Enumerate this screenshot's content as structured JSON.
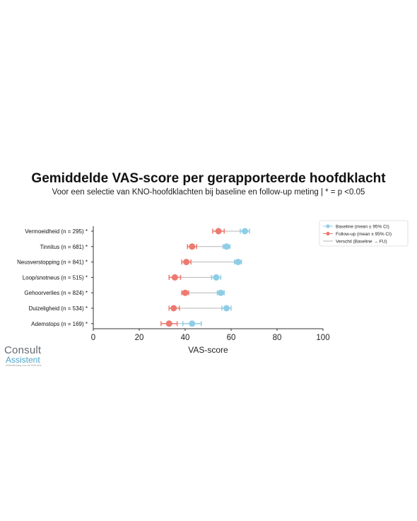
{
  "colors": {
    "baseline": "#8ecde6",
    "followup": "#ec7a70",
    "diff": "#b5b5b5",
    "axis": "#333333"
  },
  "chart_data": {
    "type": "dot-plot",
    "title": "Gemiddelde VAS-score per gerapporteerde hoofdklacht",
    "subtitle": "Voor een selectie van KNO-hoofdklachten bij baseline en follow-up meting | * = p <0.05",
    "xlabel": "VAS-score",
    "xlim": [
      0,
      100
    ],
    "xticks": [
      0,
      20,
      40,
      60,
      80,
      100
    ],
    "categories": [
      "Vermoeidheid (n = 295) *",
      "Tinnitus (n = 681) *",
      "Neusverstopping (n = 841) *",
      "Loop/snotneus (n = 515) *",
      "Gehoorverlies (n = 824) *",
      "Duizeligheid (n = 534) *",
      "Ademstops (n = 169) *"
    ],
    "series": [
      {
        "name": "Baseline (mean ± 95% CI)",
        "mean": [
          66,
          58,
          63,
          53.5,
          55.5,
          58,
          43
        ],
        "ci_low": [
          64,
          56.5,
          61.5,
          51.5,
          54,
          56,
          39
        ],
        "ci_high": [
          68,
          59.5,
          64.5,
          55.5,
          57,
          60,
          47
        ]
      },
      {
        "name": "Follow-up (mean ± 95% CI)",
        "mean": [
          54.5,
          43,
          40.5,
          35.5,
          40,
          35,
          33
        ],
        "ci_low": [
          52,
          41,
          38.5,
          33,
          38.5,
          33,
          29.5
        ],
        "ci_high": [
          57,
          45,
          42.5,
          38,
          41.5,
          37.5,
          36.5
        ]
      },
      {
        "name": "Verschil (Baseline → FU)"
      }
    ],
    "legend": "top-right"
  },
  "logo": {
    "line1": "Consult",
    "line2": "Assistent",
    "tagline": "ondersteuning voor de KNO-arts"
  }
}
